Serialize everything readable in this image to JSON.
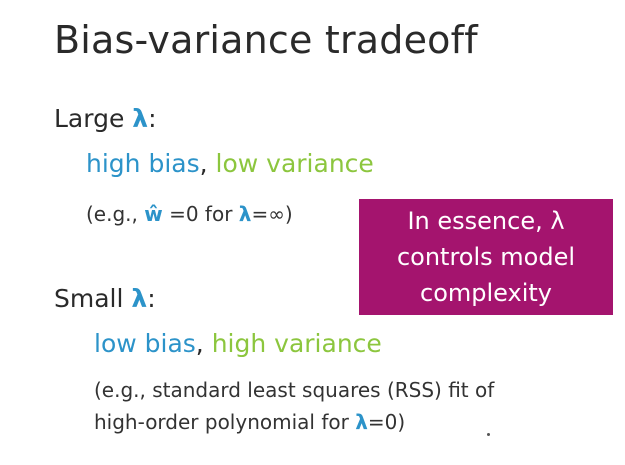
{
  "title": "Bias-variance tradeoff",
  "large": {
    "label": "Large",
    "symbol": "λ",
    "colon": ":",
    "bias": "high bias",
    "comma": ",",
    "variance": "low variance",
    "example": {
      "prefix": "(e.g.,",
      "w_hat": "ŵ",
      "mid": "=0 for",
      "lambda": "λ",
      "suffix": "=∞)"
    }
  },
  "small": {
    "label": "Small",
    "symbol": "λ",
    "colon": ":",
    "bias": "low bias",
    "comma": ",",
    "variance": "high variance",
    "example": {
      "line1": "(e.g., standard least squares (RSS) fit of",
      "line2_prefix": "high-order polynomial for",
      "lambda": "λ",
      "line2_suffix": "=0)"
    }
  },
  "callout": {
    "line1": "In essence, λ",
    "line2": "controls model",
    "line3": "complexity"
  },
  "colors": {
    "blue": "#2c93c9",
    "green": "#8cc63e",
    "callout_bg": "#a4146e",
    "text": "#2a2a2a"
  }
}
